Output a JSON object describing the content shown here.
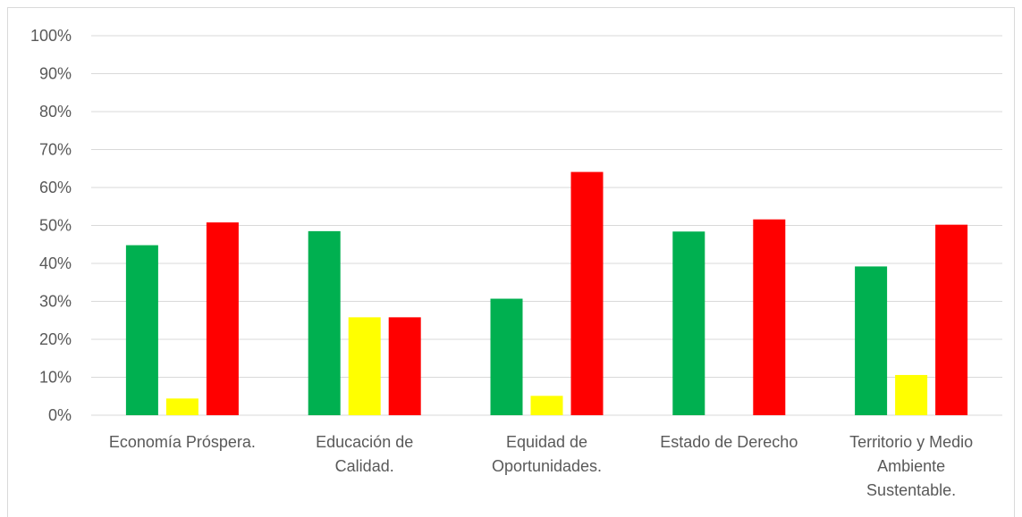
{
  "chart_data": {
    "type": "bar",
    "title": "",
    "xlabel": "",
    "ylabel": "",
    "ylim": [
      0,
      1
    ],
    "y_ticks": [
      "0%",
      "10%",
      "20%",
      "30%",
      "40%",
      "50%",
      "60%",
      "70%",
      "80%",
      "90%",
      "100%"
    ],
    "grid": true,
    "legend": "none",
    "categories": [
      [
        "Economía Próspera."
      ],
      [
        "Educación de",
        "Calidad."
      ],
      [
        "Equidad de",
        "Oportunidades."
      ],
      [
        "Estado de Derecho"
      ],
      [
        "Territorio y Medio",
        "Ambiente",
        "Sustentable."
      ]
    ],
    "series": [
      {
        "color": "#00b050",
        "values": [
          0.448,
          0.485,
          0.307,
          0.484,
          0.392
        ]
      },
      {
        "color": "#ffff00",
        "values": [
          0.044,
          0.258,
          0.051,
          0.0,
          0.106
        ]
      },
      {
        "color": "#ff0000",
        "values": [
          0.508,
          0.258,
          0.641,
          0.516,
          0.502
        ]
      }
    ]
  }
}
